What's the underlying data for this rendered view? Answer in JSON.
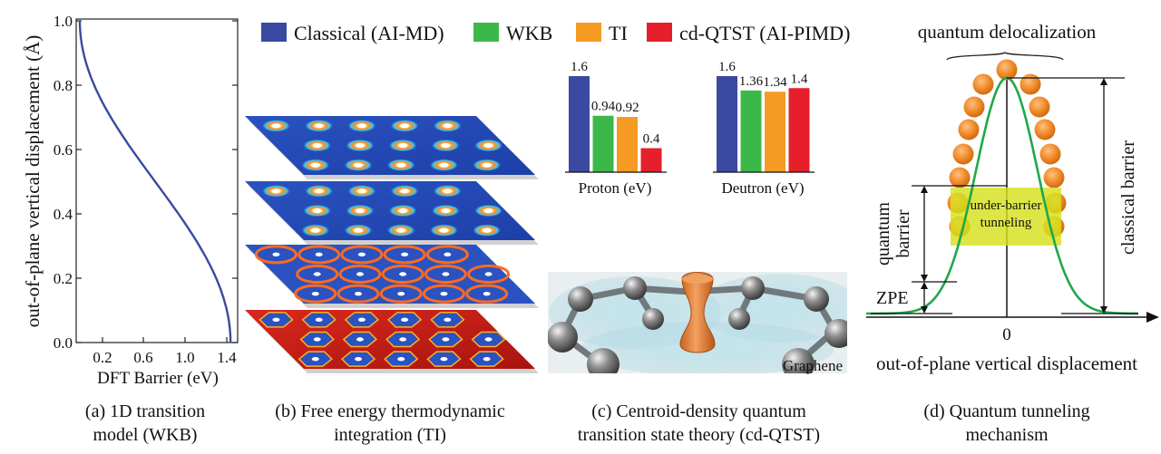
{
  "legend": {
    "items": [
      {
        "label": "Classical (AI-MD)",
        "color": "#3a4aa0"
      },
      {
        "label": "WKB",
        "color": "#3cb84a"
      },
      {
        "label": "TI",
        "color": "#f59a23"
      },
      {
        "label": "cd-QTST (AI-PIMD)",
        "color": "#e5202a"
      }
    ]
  },
  "panel_a": {
    "ylabel": "out-of-plane vertical displacement (Å)",
    "xlabel": "DFT Barrier (eV)",
    "yticks": [
      "0.0",
      "0.2",
      "0.4",
      "0.6",
      "0.8",
      "1.0"
    ],
    "xticks": [
      "0.2",
      "0.6",
      "1.0",
      "1.4"
    ],
    "curve_color": "#3a4aa0",
    "caption": [
      "(a) 1D transition",
      "model (WKB)"
    ]
  },
  "panel_b": {
    "caption": [
      "(b) Free energy thermodynamic",
      "integration (TI)"
    ]
  },
  "panel_c": {
    "graphene_label": "Graphene",
    "caption": [
      "(c) Centroid-density quantum",
      "transition state theory (cd-QTST)"
    ]
  },
  "chart_data": [
    {
      "type": "bar",
      "title": "Proton (eV)",
      "categories": [
        "Classical (AI-MD)",
        "WKB",
        "TI",
        "cd-QTST (AI-PIMD)"
      ],
      "values": [
        1.6,
        0.94,
        0.92,
        0.4
      ],
      "labels": [
        "1.6",
        "0.94",
        "0.92",
        "0.4"
      ],
      "ylim": [
        0,
        1.6
      ]
    },
    {
      "type": "bar",
      "title": "Deutron (eV)",
      "categories": [
        "Classical (AI-MD)",
        "WKB",
        "TI",
        "cd-QTST (AI-PIMD)"
      ],
      "values": [
        1.6,
        1.36,
        1.34,
        1.4
      ],
      "labels": [
        "1.6",
        "1.36",
        "1.34",
        "1.4"
      ],
      "ylim": [
        0,
        1.6
      ]
    }
  ],
  "panel_d": {
    "top_label": "quantum delocalization",
    "under_barrier": [
      "under-barrier",
      "tunneling"
    ],
    "quantum_barrier": [
      "quantum",
      "barrier"
    ],
    "classical_barrier": "classical barrier",
    "zpe": "ZPE",
    "origin": "0",
    "xlabel": "out-of-plane vertical displacement",
    "caption": [
      "(d) Quantum tunneling",
      "mechanism"
    ]
  }
}
